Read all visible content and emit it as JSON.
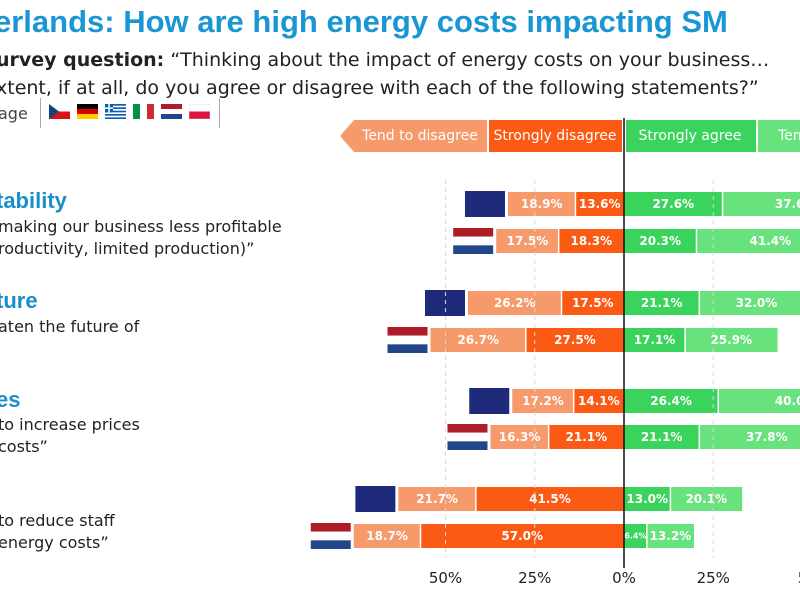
{
  "header": {
    "title": "erlands: How are high energy costs impacting SM",
    "question_label": "urvey question:",
    "question_line1": "“Thinking about the impact of energy costs on your business…",
    "question_line2": "xtent, if at all, do you agree or disagree with each of the following statements?”",
    "legend_note": "age"
  },
  "colors": {
    "tend_disagree": "#f79a6b",
    "strongly_disagree": "#fa5a14",
    "strongly_agree": "#3ad35c",
    "tend_agree": "#67e27c",
    "average_bar": "#1f2a7a",
    "axis": "#111111"
  },
  "flags": [
    "czech-flag",
    "german-flag",
    "greek-flag",
    "italian-flag",
    "dutch-flag",
    "polish-flag"
  ],
  "statements": [
    {
      "head": "tability",
      "line1": "making our business less profitable",
      "line2": "roductivity, limited production)”"
    },
    {
      "head": "ture",
      "line1": "aten the future of",
      "line2": ""
    },
    {
      "head": "es",
      "line1": "to increase prices",
      "line2": "costs”"
    },
    {
      "head": "",
      "line1": "to reduce staff",
      "line2": "energy costs”"
    }
  ],
  "chart_data": {
    "type": "bar",
    "orientation": "horizontal-diverging",
    "categories_legend": [
      "Tend to disagree",
      "Strongly disagree",
      "Strongly agree",
      "Ten"
    ],
    "x_ticks": [
      "50%",
      "25%",
      "0%",
      "25%",
      "5"
    ],
    "xlim": [
      -50,
      50
    ],
    "series": [
      {
        "group": 1,
        "rows": [
          {
            "flag": "average",
            "tend_disagree": 18.9,
            "strongly_disagree": 13.6,
            "strongly_agree": 27.6,
            "tend_agree": 37.6,
            "avg_label": ""
          },
          {
            "flag": "netherlands",
            "tend_disagree": 17.5,
            "strongly_disagree": 18.3,
            "strongly_agree": 20.3,
            "tend_agree": 41.4
          }
        ]
      },
      {
        "group": 2,
        "rows": [
          {
            "flag": "average",
            "tend_disagree": 26.2,
            "strongly_disagree": 17.5,
            "strongly_agree": 21.1,
            "tend_agree": 32.0
          },
          {
            "flag": "netherlands",
            "tend_disagree": 26.7,
            "strongly_disagree": 27.5,
            "strongly_agree": 17.1,
            "tend_agree": 25.9
          }
        ]
      },
      {
        "group": 3,
        "rows": [
          {
            "flag": "average",
            "tend_disagree": 17.2,
            "strongly_disagree": 14.1,
            "strongly_agree": 26.4,
            "tend_agree": 40.0
          },
          {
            "flag": "netherlands",
            "tend_disagree": 16.3,
            "strongly_disagree": 21.1,
            "strongly_agree": 21.1,
            "tend_agree": 37.8
          }
        ]
      },
      {
        "group": 4,
        "rows": [
          {
            "flag": "average",
            "tend_disagree": 21.7,
            "strongly_disagree": 41.5,
            "strongly_agree": 13.0,
            "tend_agree": 20.1
          },
          {
            "flag": "netherlands",
            "tend_disagree": 18.7,
            "strongly_disagree": 57.0,
            "strongly_agree": 6.4,
            "tend_agree": 13.2
          }
        ]
      }
    ],
    "value_labels": {
      "rows": [
        [
          "18.9%",
          "13.6%",
          "27.6%",
          "37.6"
        ],
        [
          "17.5%",
          "18.3%",
          "20.3%",
          "41.4%"
        ],
        [
          "26.2%",
          "17.5%",
          "21.1%",
          "32.0%"
        ],
        [
          "26.7%",
          "27.5%",
          "17.1%",
          "25.9%"
        ],
        [
          "17.2%",
          "14.1%",
          "26.4%",
          "40.0"
        ],
        [
          "16.3%",
          "21.1%",
          "21.1%",
          "37.8%"
        ],
        [
          "21.7%",
          "41.5%",
          "13.0%",
          "20.1%"
        ],
        [
          "18.7%",
          "57.0%",
          "6.4%",
          "13.2%"
        ]
      ]
    }
  }
}
